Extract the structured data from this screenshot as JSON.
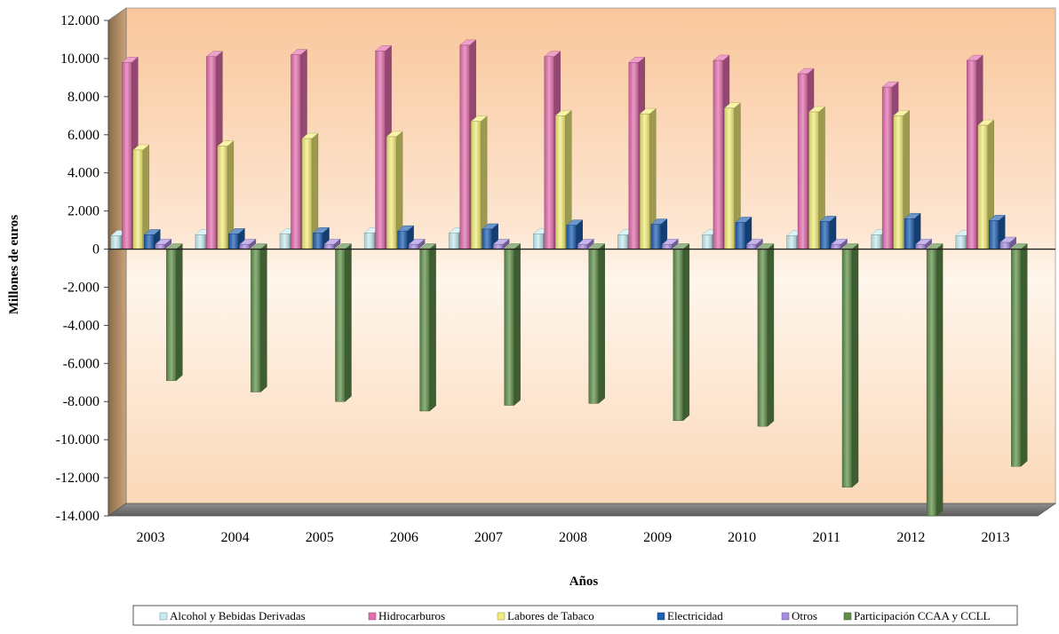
{
  "chart_data": {
    "type": "bar",
    "title": "",
    "xlabel": "Años",
    "ylabel": "Millones de euros",
    "ylim": [
      -14000,
      12000
    ],
    "yticks": [
      12000,
      10000,
      8000,
      6000,
      4000,
      2000,
      0,
      -2000,
      -4000,
      -6000,
      -8000,
      -10000,
      -12000,
      -14000
    ],
    "ytick_labels": [
      "12.000",
      "10.000",
      "8.000",
      "6.000",
      "4.000",
      "2.000",
      "0",
      "-2.000",
      "-4.000",
      "-6.000",
      "-8.000",
      "-10.000",
      "-12.000",
      "-14.000"
    ],
    "grid": false,
    "style": "3d-clustered-columns",
    "legend_position": "bottom",
    "categories": [
      "2003",
      "2004",
      "2005",
      "2006",
      "2007",
      "2008",
      "2009",
      "2010",
      "2011",
      "2012",
      "2013"
    ],
    "series": [
      {
        "name": "Alcohol y Bebidas Derivadas",
        "color": "#c6ecf0",
        "values": [
          700,
          750,
          800,
          850,
          850,
          800,
          750,
          750,
          700,
          750,
          700
        ]
      },
      {
        "name": "Hidrocarburos",
        "color": "#e36fae",
        "values": [
          9800,
          10100,
          10200,
          10400,
          10700,
          10100,
          9800,
          9900,
          9200,
          8500,
          9900
        ]
      },
      {
        "name": "Labores de Tabaco",
        "color": "#f2ec7a",
        "values": [
          5200,
          5400,
          5800,
          5900,
          6700,
          7000,
          7100,
          7400,
          7200,
          7000,
          6500
        ]
      },
      {
        "name": "Electricidad",
        "color": "#1f5fb0",
        "values": [
          750,
          800,
          850,
          950,
          1050,
          1250,
          1300,
          1400,
          1450,
          1600,
          1500
        ]
      },
      {
        "name": "Otros",
        "color": "#a98ee0",
        "values": [
          250,
          250,
          250,
          250,
          250,
          250,
          250,
          250,
          250,
          250,
          350
        ]
      },
      {
        "name": "Participación CCAA y  CCLL",
        "color": "#5f8f4a",
        "values": [
          -6900,
          -7500,
          -8000,
          -8500,
          -8200,
          -8100,
          -9000,
          -9300,
          -12500,
          -14000,
          -11400
        ]
      }
    ]
  }
}
